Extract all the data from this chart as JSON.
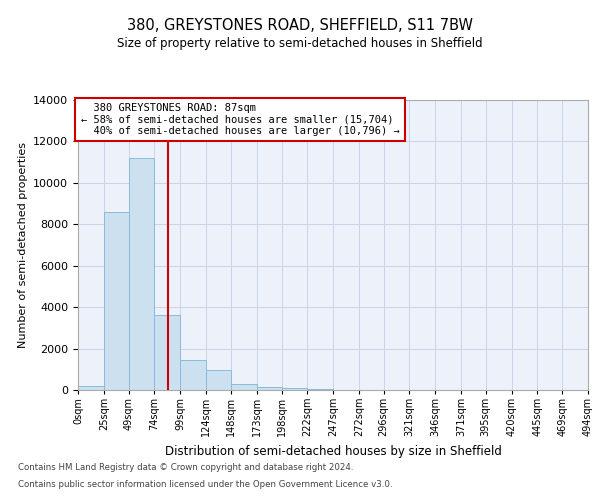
{
  "title_line1": "380, GREYSTONES ROAD, SHEFFIELD, S11 7BW",
  "title_line2": "Size of property relative to semi-detached houses in Sheffield",
  "xlabel": "Distribution of semi-detached houses by size in Sheffield",
  "ylabel": "Number of semi-detached properties",
  "property_label": "380 GREYSTONES ROAD: 87sqm",
  "pct_smaller": 58,
  "count_smaller": 15704,
  "pct_larger": 40,
  "count_larger": 10796,
  "bin_edges": [
    0,
    25,
    49,
    74,
    99,
    124,
    148,
    173,
    198,
    222,
    247,
    272,
    296,
    321,
    346,
    371,
    395,
    420,
    445,
    469,
    494
  ],
  "bin_labels": [
    "0sqm",
    "25sqm",
    "49sqm",
    "74sqm",
    "99sqm",
    "124sqm",
    "148sqm",
    "173sqm",
    "198sqm",
    "222sqm",
    "247sqm",
    "272sqm",
    "296sqm",
    "321sqm",
    "346sqm",
    "371sqm",
    "395sqm",
    "420sqm",
    "445sqm",
    "469sqm",
    "494sqm"
  ],
  "bar_heights": [
    200,
    8600,
    11200,
    3600,
    1450,
    950,
    300,
    160,
    80,
    30,
    10,
    5,
    2,
    1,
    0,
    0,
    0,
    0,
    0,
    0
  ],
  "bar_color": "#cce0f0",
  "bar_edge_color": "#88bbdd",
  "vline_color": "#cc0000",
  "vline_x": 87,
  "ylim": [
    0,
    14000
  ],
  "yticks": [
    0,
    2000,
    4000,
    6000,
    8000,
    10000,
    12000,
    14000
  ],
  "grid_color": "#c8d4e8",
  "annotation_box_edge": "#cc0000",
  "footer_line1": "Contains HM Land Registry data © Crown copyright and database right 2024.",
  "footer_line2": "Contains public sector information licensed under the Open Government Licence v3.0.",
  "background_color": "#ffffff",
  "plot_bg_color": "#edf2fa"
}
